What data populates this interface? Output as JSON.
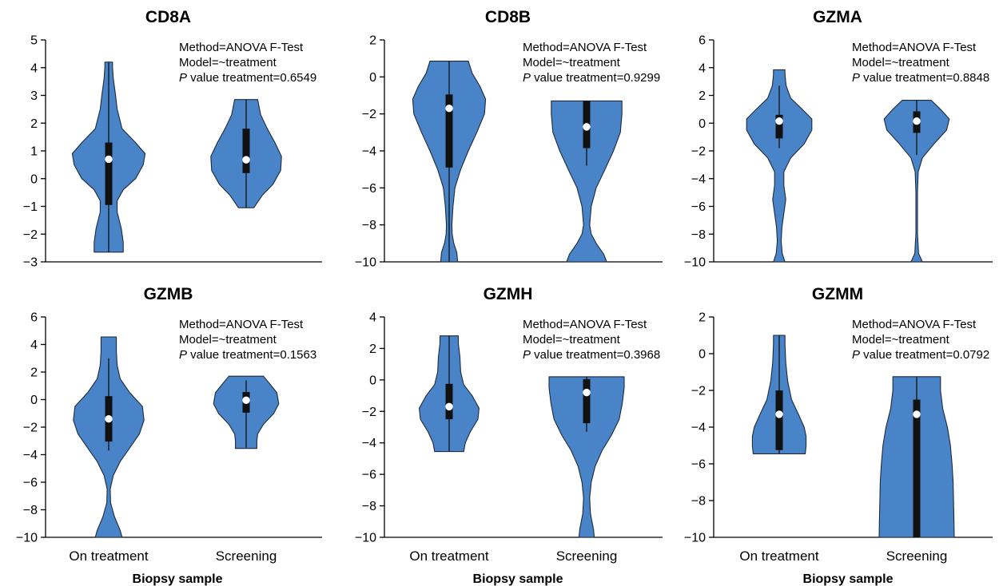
{
  "chart_data": [
    {
      "type": "violin",
      "title": "CD8A",
      "xlabel": "",
      "ylim": [
        -3,
        5
      ],
      "yticks": [
        5,
        4,
        3,
        2,
        1,
        0,
        -1,
        -2,
        -3
      ],
      "categories": [
        "On treatment",
        "Screening"
      ],
      "annotation": {
        "method": "Method=ANOVA F-Test",
        "model": "Model=~treatment",
        "p_italic": "P",
        "p_text": " value treatment=0.6549"
      },
      "violins": [
        {
          "category": "On treatment",
          "min": -2.65,
          "max": 4.2,
          "q1": -0.95,
          "q3": 1.3,
          "median": 0.7,
          "whisker_low": -2.65,
          "whisker_high": 4.2,
          "density": [
            [
              -2.65,
              0.38
            ],
            [
              -2.3,
              0.38
            ],
            [
              -1.8,
              0.33
            ],
            [
              -1.2,
              0.22
            ],
            [
              -0.8,
              0.22
            ],
            [
              -0.4,
              0.38
            ],
            [
              0,
              0.7
            ],
            [
              0.5,
              0.9
            ],
            [
              0.9,
              0.95
            ],
            [
              1.3,
              0.7
            ],
            [
              1.8,
              0.35
            ],
            [
              2.5,
              0.22
            ],
            [
              3.0,
              0.18
            ],
            [
              3.6,
              0.12
            ],
            [
              4.0,
              0.1
            ],
            [
              4.2,
              0.1
            ]
          ]
        },
        {
          "category": "Screening",
          "min": -1.05,
          "max": 2.85,
          "q1": 0.2,
          "q3": 1.8,
          "median": 0.68,
          "whisker_low": -1.05,
          "whisker_high": 2.85,
          "density": [
            [
              -1.05,
              0.2
            ],
            [
              -0.6,
              0.42
            ],
            [
              -0.2,
              0.7
            ],
            [
              0.3,
              0.9
            ],
            [
              0.8,
              0.92
            ],
            [
              1.3,
              0.75
            ],
            [
              1.8,
              0.55
            ],
            [
              2.3,
              0.38
            ],
            [
              2.85,
              0.3
            ]
          ]
        }
      ]
    },
    {
      "type": "violin",
      "title": "CD8B",
      "xlabel": "",
      "ylim": [
        -10,
        2
      ],
      "yticks": [
        2,
        0,
        -2,
        -4,
        -6,
        -8,
        -10
      ],
      "categories": [
        "On treatment",
        "Screening"
      ],
      "annotation": {
        "method": "Method=ANOVA F-Test",
        "model": "Model=~treatment",
        "p_italic": "P",
        "p_text": " value treatment=0.9299"
      },
      "violins": [
        {
          "category": "On treatment",
          "min": -10,
          "max": 0.85,
          "q1": -4.9,
          "q3": -0.95,
          "median": -1.7,
          "whisker_low": -10,
          "whisker_high": 0.85,
          "density": [
            [
              -10,
              0.22
            ],
            [
              -9.5,
              0.2
            ],
            [
              -9,
              0.12
            ],
            [
              -8.5,
              0.08
            ],
            [
              -8,
              0.07
            ],
            [
              -7,
              0.1
            ],
            [
              -6,
              0.15
            ],
            [
              -5,
              0.3
            ],
            [
              -4,
              0.5
            ],
            [
              -3,
              0.72
            ],
            [
              -2,
              0.92
            ],
            [
              -1.2,
              0.95
            ],
            [
              -0.5,
              0.8
            ],
            [
              0.2,
              0.6
            ],
            [
              0.85,
              0.5
            ]
          ]
        },
        {
          "category": "Screening",
          "min": -10,
          "max": -1.3,
          "q1": -3.85,
          "q3": -1.3,
          "median": -2.7,
          "whisker_low": -4.8,
          "whisker_high": -1.3,
          "density": [
            [
              -10,
              0.52
            ],
            [
              -9.6,
              0.45
            ],
            [
              -9,
              0.25
            ],
            [
              -8.5,
              0.12
            ],
            [
              -8,
              0.08
            ],
            [
              -7,
              0.12
            ],
            [
              -6,
              0.25
            ],
            [
              -5,
              0.48
            ],
            [
              -4,
              0.7
            ],
            [
              -3,
              0.88
            ],
            [
              -2,
              0.92
            ],
            [
              -1.3,
              0.92
            ]
          ]
        }
      ]
    },
    {
      "type": "violin",
      "title": "GZMA",
      "xlabel": "",
      "ylim": [
        -10,
        6
      ],
      "yticks": [
        6,
        4,
        2,
        0,
        -2,
        -4,
        -6,
        -8,
        -10
      ],
      "categories": [
        "On treatment",
        "Screening"
      ],
      "annotation": {
        "method": "Method=ANOVA F-Test",
        "model": "Model=~treatment",
        "p_italic": "P",
        "p_text": " value treatment=0.8848"
      },
      "violins": [
        {
          "category": "On treatment",
          "min": -10,
          "max": 3.85,
          "q1": -1.1,
          "q3": 0.6,
          "median": 0.15,
          "whisker_low": -1.8,
          "whisker_high": 2.7,
          "density": [
            [
              -10,
              0.15
            ],
            [
              -9.4,
              0.08
            ],
            [
              -8.5,
              0.05
            ],
            [
              -7.5,
              0.07
            ],
            [
              -6.5,
              0.12
            ],
            [
              -5.5,
              0.17
            ],
            [
              -4.5,
              0.12
            ],
            [
              -3.5,
              0.12
            ],
            [
              -2.5,
              0.3
            ],
            [
              -1.5,
              0.65
            ],
            [
              -0.5,
              0.85
            ],
            [
              0.3,
              0.85
            ],
            [
              1,
              0.6
            ],
            [
              1.8,
              0.3
            ],
            [
              2.7,
              0.18
            ],
            [
              3.5,
              0.15
            ],
            [
              3.85,
              0.15
            ]
          ]
        },
        {
          "category": "Screening",
          "min": -10,
          "max": 1.65,
          "q1": -0.7,
          "q3": 0.85,
          "median": 0.15,
          "whisker_low": -2.3,
          "whisker_high": 1.65,
          "density": [
            [
              -10,
              0.15
            ],
            [
              -9.4,
              0.05
            ],
            [
              -8,
              0.02
            ],
            [
              -5,
              0.02
            ],
            [
              -3.5,
              0.04
            ],
            [
              -2.5,
              0.15
            ],
            [
              -1.5,
              0.45
            ],
            [
              -0.5,
              0.78
            ],
            [
              0.3,
              0.85
            ],
            [
              1,
              0.62
            ],
            [
              1.65,
              0.38
            ]
          ]
        }
      ]
    },
    {
      "type": "violin",
      "title": "GZMB",
      "xlabel": "Biopsy sample",
      "ylim": [
        -10,
        6
      ],
      "yticks": [
        6,
        4,
        2,
        0,
        -2,
        -4,
        -6,
        -8,
        -10
      ],
      "categories": [
        "On treatment",
        "Screening"
      ],
      "annotation": {
        "method": "Method=ANOVA F-Test",
        "model": "Model=~treatment",
        "p_italic": "P",
        "p_text": " value treatment=0.1563"
      },
      "violins": [
        {
          "category": "On treatment",
          "min": -10,
          "max": 4.55,
          "q1": -3.05,
          "q3": 0.25,
          "median": -1.4,
          "whisker_low": -3.7,
          "whisker_high": 3.0,
          "density": [
            [
              -10,
              0.35
            ],
            [
              -9.5,
              0.3
            ],
            [
              -8.5,
              0.15
            ],
            [
              -7.5,
              0.05
            ],
            [
              -6.5,
              0.04
            ],
            [
              -5.5,
              0.12
            ],
            [
              -4.5,
              0.3
            ],
            [
              -3.5,
              0.55
            ],
            [
              -2.5,
              0.8
            ],
            [
              -1.5,
              0.92
            ],
            [
              -0.5,
              0.88
            ],
            [
              0.5,
              0.55
            ],
            [
              1.5,
              0.3
            ],
            [
              2.5,
              0.22
            ],
            [
              3.5,
              0.2
            ],
            [
              4.55,
              0.2
            ]
          ]
        },
        {
          "category": "Screening",
          "min": -3.55,
          "max": 1.7,
          "q1": -0.95,
          "q3": 0.55,
          "median": -0.05,
          "whisker_low": -3.5,
          "whisker_high": 1.4,
          "density": [
            [
              -3.55,
              0.28
            ],
            [
              -3,
              0.28
            ],
            [
              -2.5,
              0.3
            ],
            [
              -1.8,
              0.45
            ],
            [
              -1,
              0.72
            ],
            [
              -0.3,
              0.85
            ],
            [
              0.5,
              0.8
            ],
            [
              1.2,
              0.6
            ],
            [
              1.7,
              0.45
            ]
          ]
        }
      ]
    },
    {
      "type": "violin",
      "title": "GZMH",
      "xlabel": "Biopsy sample",
      "ylim": [
        -10,
        4
      ],
      "yticks": [
        4,
        2,
        0,
        -2,
        -4,
        -6,
        -8,
        -10
      ],
      "categories": [
        "On treatment",
        "Screening"
      ],
      "annotation": {
        "method": "Method=ANOVA F-Test",
        "model": "Model=~treatment",
        "p_italic": "P",
        "p_text": " value treatment=0.3968"
      },
      "violins": [
        {
          "category": "On treatment",
          "min": -4.55,
          "max": 2.8,
          "q1": -2.5,
          "q3": -0.25,
          "median": -1.7,
          "whisker_low": -4.55,
          "whisker_high": 2.8,
          "density": [
            [
              -4.55,
              0.38
            ],
            [
              -4,
              0.42
            ],
            [
              -3.3,
              0.55
            ],
            [
              -2.5,
              0.75
            ],
            [
              -1.8,
              0.78
            ],
            [
              -1,
              0.6
            ],
            [
              -0.3,
              0.38
            ],
            [
              0.5,
              0.3
            ],
            [
              1.5,
              0.28
            ],
            [
              2.3,
              0.24
            ],
            [
              2.8,
              0.24
            ]
          ]
        },
        {
          "category": "Screening",
          "min": -10,
          "max": 0.2,
          "q1": -2.75,
          "q3": 0.05,
          "median": -0.8,
          "whisker_low": -3.3,
          "whisker_high": 0.2,
          "density": [
            [
              -10,
              0.2
            ],
            [
              -9.5,
              0.18
            ],
            [
              -8.5,
              0.1
            ],
            [
              -7.5,
              0.08
            ],
            [
              -6.5,
              0.12
            ],
            [
              -5.5,
              0.22
            ],
            [
              -4.5,
              0.4
            ],
            [
              -3.5,
              0.65
            ],
            [
              -2.5,
              0.85
            ],
            [
              -1.5,
              0.93
            ],
            [
              -0.5,
              0.98
            ],
            [
              0.2,
              0.98
            ]
          ]
        }
      ]
    },
    {
      "type": "violin",
      "title": "GZMM",
      "xlabel": "Biopsy sample",
      "ylim": [
        -10,
        2
      ],
      "yticks": [
        2,
        0,
        -2,
        -4,
        -6,
        -8,
        -10
      ],
      "categories": [
        "On treatment",
        "Screening"
      ],
      "annotation": {
        "method": "Method=ANOVA F-Test",
        "model": "Model=~treatment",
        "p_italic": "P",
        "p_text": " value treatment=0.0792"
      },
      "violins": [
        {
          "category": "On treatment",
          "min": -5.45,
          "max": 1.0,
          "q1": -5.25,
          "q3": -2.0,
          "median": -3.3,
          "whisker_low": -5.45,
          "whisker_high": 1.0,
          "density": [
            [
              -5.45,
              0.68
            ],
            [
              -5,
              0.7
            ],
            [
              -4.5,
              0.7
            ],
            [
              -4,
              0.65
            ],
            [
              -3.3,
              0.5
            ],
            [
              -2.5,
              0.32
            ],
            [
              -1.5,
              0.22
            ],
            [
              -0.5,
              0.17
            ],
            [
              0.5,
              0.15
            ],
            [
              1.0,
              0.15
            ]
          ]
        },
        {
          "category": "Screening",
          "min": -10,
          "max": -1.25,
          "q1": -10,
          "q3": -2.5,
          "median": -3.3,
          "whisker_low": -10,
          "whisker_high": -1.25,
          "density": [
            [
              -10,
              0.98
            ],
            [
              -9,
              0.97
            ],
            [
              -8,
              0.96
            ],
            [
              -7,
              0.95
            ],
            [
              -6,
              0.92
            ],
            [
              -5,
              0.88
            ],
            [
              -4,
              0.8
            ],
            [
              -3,
              0.68
            ],
            [
              -2,
              0.62
            ],
            [
              -1.25,
              0.62
            ]
          ]
        }
      ]
    }
  ]
}
